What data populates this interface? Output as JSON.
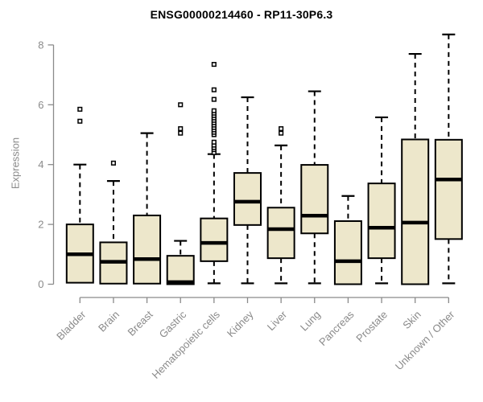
{
  "chart": {
    "title": "ENSG00000214460 - RP11-30P6.3",
    "ylabel": "Expression"
  },
  "chart_data": {
    "type": "boxplot",
    "title": "ENSG00000214460 - RP11-30P6.3",
    "xlabel": "",
    "ylabel": "Expression",
    "ylim": [
      0,
      8
    ],
    "yticks": [
      0,
      2,
      4,
      6,
      8
    ],
    "grid": false,
    "legend": "none",
    "colors": {
      "box_fill": "#ede7cb",
      "box_stroke": "#000000",
      "median": "#000000",
      "whisker": "#000000",
      "outlier": "#000000",
      "axis": "#8a8a8a",
      "title": "#000000",
      "background": "#ffffff"
    },
    "categories": [
      "Bladder",
      "Brain",
      "Breast",
      "Gastric",
      "Hematopoietic cells",
      "Kidney",
      "Liver",
      "Lung",
      "Pancreas",
      "Prostate",
      "Skin",
      "Unknown / Other"
    ],
    "series": [
      {
        "category": "Bladder",
        "whisker_low": 0.05,
        "q1": 0.05,
        "median": 1.0,
        "q3": 2.0,
        "whisker_high": 4.0,
        "outliers": [
          5.45,
          5.85
        ]
      },
      {
        "category": "Brain",
        "whisker_low": 0.02,
        "q1": 0.02,
        "median": 0.75,
        "q3": 1.4,
        "whisker_high": 3.45,
        "outliers": [
          4.05
        ]
      },
      {
        "category": "Breast",
        "whisker_low": 0.02,
        "q1": 0.02,
        "median": 0.84,
        "q3": 2.3,
        "whisker_high": 5.05,
        "outliers": []
      },
      {
        "category": "Gastric",
        "whisker_low": 0.0,
        "q1": 0.0,
        "median": 0.07,
        "q3": 0.95,
        "whisker_high": 1.45,
        "outliers": [
          5.05,
          5.2,
          6.0
        ]
      },
      {
        "category": "Hematopoietic cells",
        "whisker_low": 0.03,
        "q1": 0.77,
        "median": 1.38,
        "q3": 2.2,
        "whisker_high": 4.35,
        "outliers": [
          4.4,
          4.5,
          4.57,
          4.65,
          4.75,
          5.0,
          5.08,
          5.16,
          5.24,
          5.32,
          5.4,
          5.48,
          5.56,
          5.64,
          5.72,
          5.8,
          6.18,
          6.5,
          7.35
        ]
      },
      {
        "category": "Kidney",
        "whisker_low": 0.03,
        "q1": 1.98,
        "median": 2.76,
        "q3": 3.72,
        "whisker_high": 6.25,
        "outliers": []
      },
      {
        "category": "Liver",
        "whisker_low": 0.03,
        "q1": 0.87,
        "median": 1.84,
        "q3": 2.56,
        "whisker_high": 4.64,
        "outliers": [
          5.05,
          5.2
        ]
      },
      {
        "category": "Lung",
        "whisker_low": 0.03,
        "q1": 1.7,
        "median": 2.29,
        "q3": 3.99,
        "whisker_high": 6.45,
        "outliers": []
      },
      {
        "category": "Pancreas",
        "whisker_low": 0.0,
        "q1": 0.0,
        "median": 0.77,
        "q3": 2.11,
        "whisker_high": 2.95,
        "outliers": []
      },
      {
        "category": "Prostate",
        "whisker_low": 0.03,
        "q1": 0.87,
        "median": 1.89,
        "q3": 3.37,
        "whisker_high": 5.58,
        "outliers": []
      },
      {
        "category": "Skin",
        "whisker_low": 0.0,
        "q1": 0.0,
        "median": 2.06,
        "q3": 4.84,
        "whisker_high": 7.7,
        "outliers": []
      },
      {
        "category": "Unknown / Other",
        "whisker_low": 0.03,
        "q1": 1.51,
        "median": 3.5,
        "q3": 4.83,
        "whisker_high": 8.35,
        "outliers": []
      }
    ]
  }
}
